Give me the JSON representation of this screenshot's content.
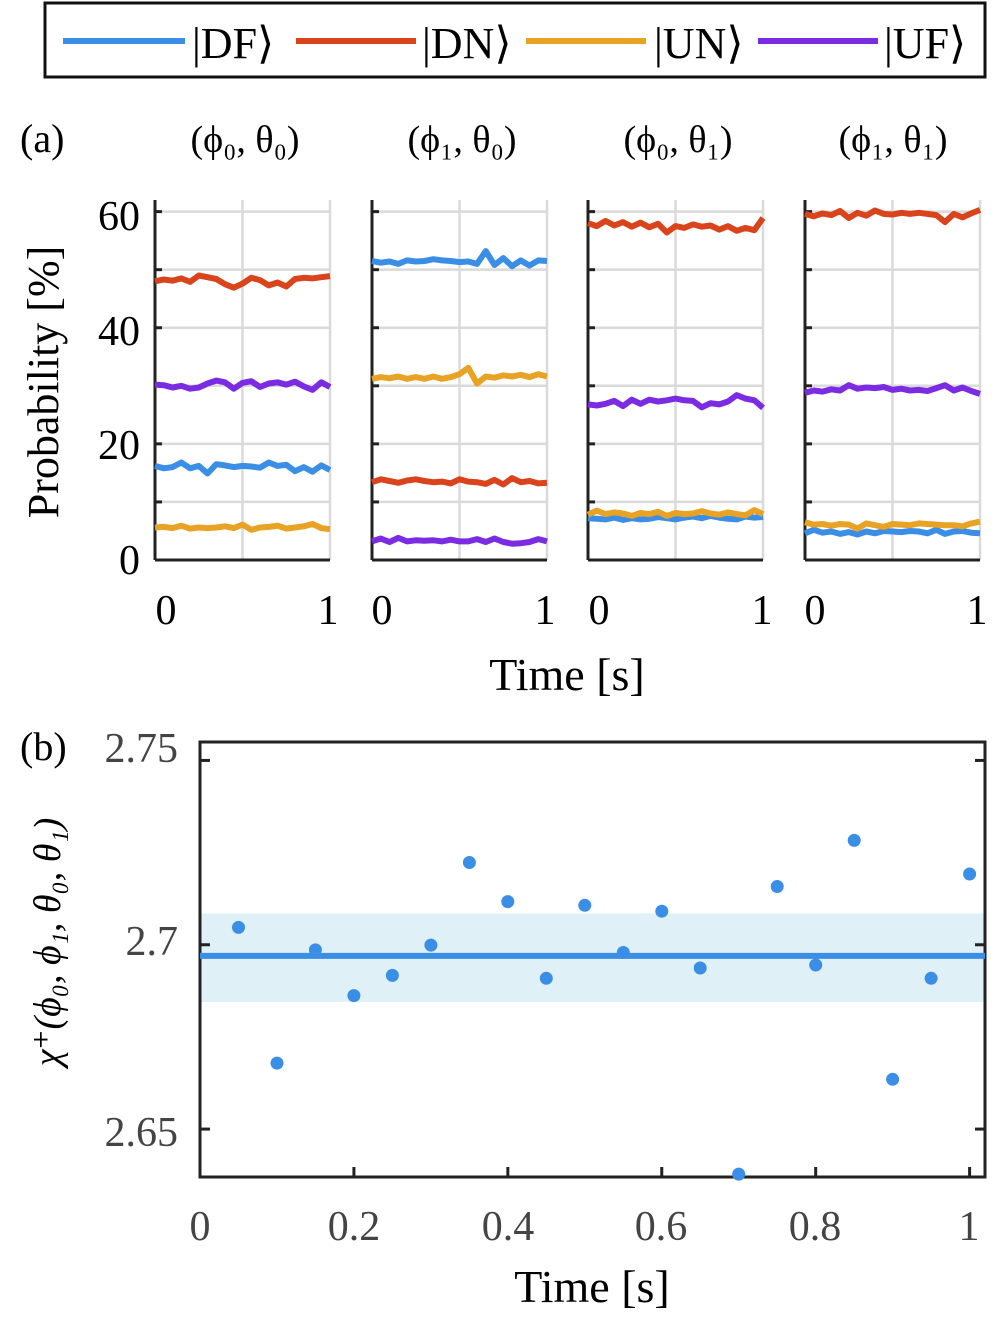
{
  "colors": {
    "DF": "#3a8ee6",
    "DN": "#d9441c",
    "UN": "#e8a224",
    "UF": "#7b2be2",
    "band": "#dff1f6",
    "grid": "#dadada",
    "axis": "#222222"
  },
  "legend": {
    "entries": [
      {
        "key": "DF",
        "label": "|DF⟩"
      },
      {
        "key": "DN",
        "label": "|DN⟩"
      },
      {
        "key": "UN",
        "label": "|UN⟩"
      },
      {
        "key": "UF",
        "label": "|UF⟩"
      }
    ]
  },
  "panel_a": {
    "label": "(a)",
    "ylabel": "Probability [%]",
    "xlabel": "Time [s]",
    "yticks": [
      "0",
      "20",
      "40",
      "60"
    ],
    "xticks": [
      "0",
      "1"
    ]
  },
  "panel_b": {
    "label": "(b)",
    "ylabel": "χ⁺(ϕ₀, ϕ₁, θ₀, θ₁)",
    "xlabel": "Time [s]",
    "yticks": [
      "2.65",
      "2.7",
      "2.75"
    ],
    "xticks": [
      "0",
      "0.2",
      "0.4",
      "0.6",
      "0.8",
      "1"
    ]
  },
  "chart_data": [
    {
      "type": "line",
      "title": "(ϕ₀, θ₀)",
      "xlabel": "Time [s]",
      "ylabel": "Probability [%]",
      "xlim": [
        0,
        1
      ],
      "ylim": [
        0,
        62
      ],
      "grid": true,
      "x": [
        0,
        0.05,
        0.1,
        0.15,
        0.2,
        0.25,
        0.3,
        0.35,
        0.4,
        0.45,
        0.5,
        0.55,
        0.6,
        0.65,
        0.7,
        0.75,
        0.8,
        0.85,
        0.9,
        0.95,
        1.0
      ],
      "series": [
        {
          "name": "|DF⟩",
          "color_key": "DF",
          "values": [
            16.2,
            15.8,
            16.0,
            16.8,
            15.8,
            16.2,
            14.9,
            16.5,
            16.3,
            16.0,
            16.2,
            16.1,
            15.9,
            16.8,
            16.2,
            16.4,
            15.3,
            16.0,
            15.2,
            16.3,
            15.5
          ]
        },
        {
          "name": "|DN⟩",
          "color_key": "DN",
          "values": [
            48.0,
            48.3,
            48.1,
            48.5,
            47.9,
            49.0,
            48.7,
            48.4,
            47.5,
            46.9,
            47.6,
            48.6,
            48.2,
            47.3,
            47.8,
            47.1,
            48.4,
            48.6,
            48.5,
            48.7,
            48.9
          ]
        },
        {
          "name": "|UN⟩",
          "color_key": "UN",
          "values": [
            5.6,
            5.7,
            5.5,
            5.9,
            5.4,
            5.6,
            5.5,
            5.6,
            5.8,
            5.5,
            6.1,
            5.2,
            5.6,
            5.7,
            5.9,
            5.4,
            5.6,
            5.8,
            6.2,
            5.5,
            5.3
          ]
        },
        {
          "name": "|UF⟩",
          "color_key": "UF",
          "values": [
            30.2,
            30.1,
            29.7,
            30.0,
            29.5,
            29.7,
            30.4,
            30.9,
            30.6,
            29.5,
            30.5,
            30.8,
            29.8,
            30.4,
            30.6,
            30.2,
            30.7,
            29.9,
            29.3,
            30.6,
            29.8
          ]
        }
      ]
    },
    {
      "type": "line",
      "title": "(ϕ₁, θ₀)",
      "xlabel": "Time [s]",
      "ylabel": "Probability [%]",
      "xlim": [
        0,
        1
      ],
      "ylim": [
        0,
        62
      ],
      "grid": true,
      "x": [
        0,
        0.05,
        0.1,
        0.15,
        0.2,
        0.25,
        0.3,
        0.35,
        0.4,
        0.45,
        0.5,
        0.55,
        0.6,
        0.65,
        0.7,
        0.75,
        0.8,
        0.85,
        0.9,
        0.95,
        1.0
      ],
      "series": [
        {
          "name": "|DF⟩",
          "color_key": "DF",
          "values": [
            51.5,
            51.2,
            51.4,
            51.0,
            51.6,
            51.4,
            51.5,
            51.8,
            51.6,
            51.5,
            51.3,
            51.4,
            51.0,
            53.2,
            50.8,
            52.0,
            50.6,
            51.6,
            50.7,
            51.6,
            51.5
          ]
        },
        {
          "name": "|DN⟩",
          "color_key": "DN",
          "values": [
            13.4,
            13.9,
            13.6,
            13.3,
            13.7,
            13.9,
            13.6,
            13.4,
            13.5,
            13.2,
            13.9,
            13.5,
            13.4,
            13.1,
            13.8,
            13.0,
            14.1,
            13.4,
            13.6,
            13.2,
            13.3
          ]
        },
        {
          "name": "|UN⟩",
          "color_key": "UN",
          "values": [
            31.2,
            31.5,
            31.3,
            31.6,
            31.2,
            31.5,
            31.2,
            31.6,
            31.2,
            31.5,
            32.0,
            33.1,
            30.4,
            31.6,
            31.4,
            31.8,
            31.6,
            31.9,
            31.5,
            32.0,
            31.6
          ]
        },
        {
          "name": "|UF⟩",
          "color_key": "UF",
          "values": [
            3.2,
            3.7,
            3.1,
            3.8,
            3.2,
            3.4,
            3.3,
            3.4,
            3.2,
            3.5,
            3.2,
            3.2,
            3.6,
            3.1,
            3.7,
            3.1,
            2.8,
            2.9,
            3.1,
            3.6,
            3.2
          ]
        }
      ]
    },
    {
      "type": "line",
      "title": "(ϕ₀, θ₁)",
      "xlabel": "Time [s]",
      "ylabel": "Probability [%]",
      "xlim": [
        0,
        1
      ],
      "ylim": [
        0,
        62
      ],
      "grid": true,
      "x": [
        0,
        0.05,
        0.1,
        0.15,
        0.2,
        0.25,
        0.3,
        0.35,
        0.4,
        0.45,
        0.5,
        0.55,
        0.6,
        0.65,
        0.7,
        0.75,
        0.8,
        0.85,
        0.9,
        0.95,
        1.0
      ],
      "series": [
        {
          "name": "|DF⟩",
          "color_key": "DF",
          "values": [
            7.2,
            7.1,
            7.0,
            7.3,
            6.9,
            7.2,
            7.0,
            7.1,
            7.4,
            7.2,
            7.0,
            7.3,
            7.5,
            7.2,
            7.6,
            7.3,
            7.1,
            7.0,
            7.5,
            7.3,
            7.4
          ]
        },
        {
          "name": "|DN⟩",
          "color_key": "DN",
          "values": [
            58.0,
            57.5,
            58.4,
            57.6,
            58.2,
            57.4,
            58.1,
            57.3,
            57.9,
            56.4,
            57.5,
            57.2,
            57.8,
            57.4,
            57.6,
            56.9,
            57.5,
            56.7,
            57.2,
            56.8,
            58.9
          ]
        },
        {
          "name": "|UN⟩",
          "color_key": "UN",
          "values": [
            7.8,
            8.5,
            7.9,
            8.2,
            8.0,
            7.6,
            8.1,
            7.9,
            8.3,
            7.6,
            8.1,
            7.9,
            8.0,
            8.4,
            8.0,
            7.8,
            8.2,
            7.9,
            7.7,
            8.6,
            7.9
          ]
        },
        {
          "name": "|UF⟩",
          "color_key": "UF",
          "values": [
            26.8,
            26.6,
            26.9,
            27.4,
            26.5,
            27.6,
            26.9,
            27.6,
            27.3,
            27.5,
            27.8,
            27.5,
            27.4,
            26.3,
            27.0,
            26.8,
            27.3,
            28.4,
            27.8,
            27.5,
            26.2
          ]
        }
      ]
    },
    {
      "type": "line",
      "title": "(ϕ₁, θ₁)",
      "xlabel": "Time [s]",
      "ylabel": "Probability [%]",
      "xlim": [
        0,
        1
      ],
      "ylim": [
        0,
        62
      ],
      "grid": true,
      "x": [
        0,
        0.05,
        0.1,
        0.15,
        0.2,
        0.25,
        0.3,
        0.35,
        0.4,
        0.45,
        0.5,
        0.55,
        0.6,
        0.65,
        0.7,
        0.75,
        0.8,
        0.85,
        0.9,
        0.95,
        1.0
      ],
      "series": [
        {
          "name": "|DF⟩",
          "color_key": "DF",
          "values": [
            4.6,
            5.2,
            4.7,
            4.9,
            4.5,
            4.8,
            4.4,
            4.9,
            4.6,
            5.0,
            4.9,
            4.8,
            5.0,
            4.9,
            4.6,
            5.2,
            4.5,
            4.9,
            5.0,
            4.7,
            4.6
          ]
        },
        {
          "name": "|DN⟩",
          "color_key": "DN",
          "values": [
            59.6,
            59.2,
            59.7,
            59.4,
            60.1,
            58.9,
            59.8,
            59.3,
            60.2,
            59.6,
            59.5,
            59.8,
            59.6,
            59.8,
            59.6,
            59.4,
            58.2,
            59.6,
            59.0,
            59.7,
            60.3
          ]
        },
        {
          "name": "|UN⟩",
          "color_key": "UN",
          "values": [
            6.5,
            6.1,
            6.2,
            5.9,
            6.2,
            6.1,
            5.4,
            6.3,
            6.0,
            5.7,
            6.2,
            6.1,
            6.0,
            6.3,
            6.2,
            6.1,
            6.0,
            6.0,
            5.8,
            6.3,
            6.6
          ]
        },
        {
          "name": "|UF⟩",
          "color_key": "UF",
          "values": [
            28.8,
            29.2,
            29.0,
            29.4,
            29.2,
            30.1,
            29.5,
            29.7,
            29.6,
            29.8,
            29.3,
            29.5,
            29.2,
            29.3,
            29.1,
            29.6,
            30.1,
            29.2,
            29.7,
            29.1,
            28.6
          ]
        }
      ]
    },
    {
      "type": "scatter",
      "title": "",
      "xlabel": "Time [s]",
      "ylabel": "χ⁺(ϕ₀, ϕ₁, θ₀, θ₁)",
      "xlim": [
        0,
        1.02
      ],
      "ylim": [
        2.637,
        2.755
      ],
      "grid": false,
      "x": [
        0.05,
        0.1,
        0.15,
        0.2,
        0.25,
        0.3,
        0.35,
        0.4,
        0.45,
        0.5,
        0.55,
        0.6,
        0.65,
        0.7,
        0.75,
        0.8,
        0.85,
        0.9,
        0.95,
        1.0
      ],
      "y": [
        2.7047,
        2.6679,
        2.6986,
        2.6862,
        2.6917,
        2.6999,
        2.7223,
        2.7117,
        2.6909,
        2.7107,
        2.6979,
        2.7091,
        2.6937,
        2.6378,
        2.7158,
        2.6945,
        2.7283,
        2.6635,
        2.6909,
        2.7192
      ],
      "mean": 2.697,
      "band": [
        2.6845,
        2.7085
      ],
      "color_key": "DF"
    }
  ]
}
